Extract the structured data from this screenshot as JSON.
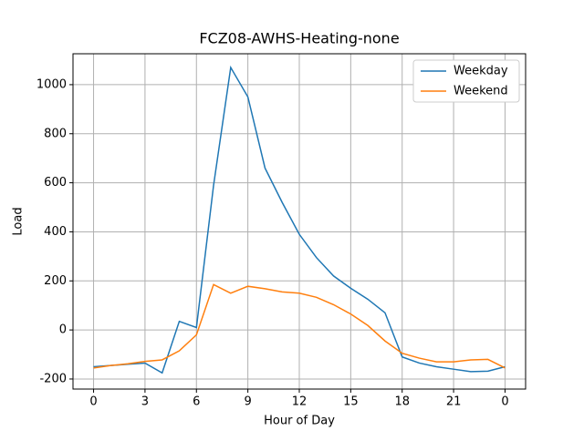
{
  "chart_data": {
    "type": "line",
    "title": "FCZ08-AWHS-Heating-none",
    "xlabel": "Hour of Day",
    "ylabel": "Load",
    "x": [
      0,
      1,
      2,
      3,
      4,
      5,
      6,
      7,
      8,
      9,
      10,
      11,
      12,
      13,
      14,
      15,
      16,
      17,
      18,
      19,
      20,
      21,
      22,
      23,
      24
    ],
    "series": [
      {
        "name": "Weekday",
        "color": "#1f77b4",
        "values": [
          -150,
          -145,
          -140,
          -135,
          -175,
          35,
          10,
          590,
          1070,
          950,
          660,
          520,
          390,
          295,
          220,
          170,
          125,
          70,
          -110,
          -135,
          -150,
          -160,
          -170,
          -168,
          -150
        ]
      },
      {
        "name": "Weekend",
        "color": "#ff7f0e",
        "values": [
          -155,
          -145,
          -138,
          -128,
          -122,
          -85,
          -20,
          185,
          150,
          178,
          168,
          155,
          150,
          133,
          103,
          65,
          18,
          -45,
          -95,
          -115,
          -130,
          -130,
          -122,
          -120,
          -155
        ]
      }
    ],
    "xlim": [
      -1.2,
      25.2
    ],
    "xticks": [
      0,
      3,
      6,
      9,
      12,
      15,
      18,
      21,
      {
        "value": 24,
        "label": "0"
      }
    ],
    "ylim": [
      -241,
      1126
    ],
    "yticks": [
      -200,
      0,
      200,
      400,
      600,
      800,
      1000
    ],
    "grid": true,
    "legend": "upper right"
  }
}
